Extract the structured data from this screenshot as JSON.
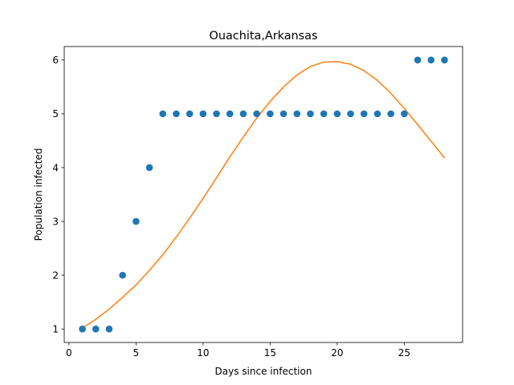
{
  "chart_data": {
    "type": "scatter",
    "title": "Ouachita,Arkansas",
    "xlabel": "Days since infection",
    "ylabel": "Population infected",
    "xlim": [
      -0.35,
      29.35
    ],
    "ylim": [
      0.75,
      6.25
    ],
    "xticks": [
      0,
      5,
      10,
      15,
      20,
      25
    ],
    "yticks": [
      1,
      2,
      3,
      4,
      5,
      6
    ],
    "grid": false,
    "series": [
      {
        "kind": "scatter",
        "color": "#1f77b4",
        "x": [
          1,
          2,
          3,
          4,
          5,
          6,
          7,
          8,
          9,
          10,
          11,
          12,
          13,
          14,
          15,
          16,
          17,
          18,
          19,
          20,
          21,
          22,
          23,
          24,
          25,
          26,
          27,
          28
        ],
        "y": [
          1,
          1,
          1,
          2,
          3,
          4,
          5,
          5,
          5,
          5,
          5,
          5,
          5,
          5,
          5,
          5,
          5,
          5,
          5,
          5,
          5,
          5,
          5,
          5,
          5,
          6,
          6,
          6
        ]
      },
      {
        "kind": "line",
        "color": "#ff7f0e",
        "x": [
          1,
          2,
          3,
          4,
          5,
          6,
          7,
          8,
          9,
          10,
          11,
          12,
          13,
          14,
          15,
          16,
          17,
          18,
          19,
          20,
          21,
          22,
          23,
          24,
          25,
          26,
          27,
          28
        ],
        "y": [
          1.02,
          1.18,
          1.37,
          1.59,
          1.82,
          2.09,
          2.38,
          2.71,
          3.06,
          3.43,
          3.81,
          4.2,
          4.57,
          4.92,
          5.23,
          5.5,
          5.72,
          5.88,
          5.96,
          5.97,
          5.92,
          5.8,
          5.62,
          5.38,
          5.1,
          4.8,
          4.49,
          4.18
        ]
      }
    ]
  }
}
